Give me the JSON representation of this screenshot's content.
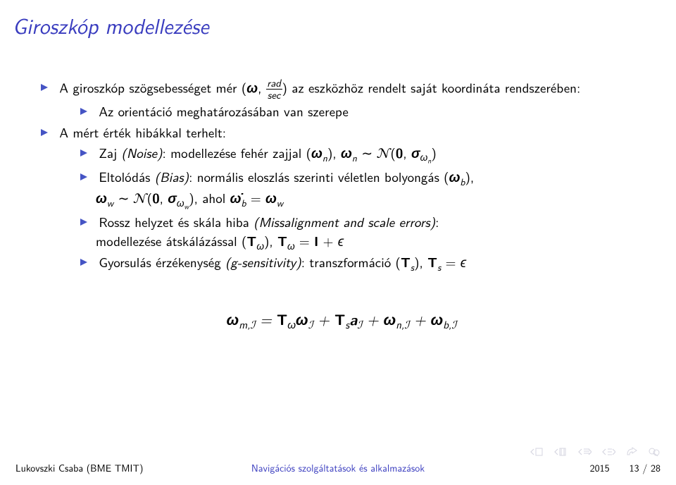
{
  "title_color": "#3a3dbf",
  "bullet_color": "#4554c4",
  "title": "Giroszkóp modellezése",
  "b1_pre": "A giroszkóp szögsebességet mér (",
  "b1_omega": "ω",
  "b1_frac_num": "rad",
  "b1_frac_den": "sec",
  "b1_post": ") az eszközhöz rendelt saját koordináta rendszerében:",
  "b1s1": "Az orientáció meghatározásában van szerepe",
  "b2": "A mért érték hibákkal terhelt:",
  "b2s1_pre": "Zaj ",
  "b2s1_noise": "(Noise)",
  "b2s1_mid1": ": modellezése fehér zajjal (",
  "b2s1_wn": "ω",
  "b2s1_n": "n",
  "b2s1_mid2": "), ",
  "b2s1_sim": " ∼ ",
  "b2s1_N": "𝒩",
  "b2s1_par": "(0, σ",
  "b2s1_sub_wn": "ω",
  "b2s1_sub_n": "n",
  "b2s1_close": ")",
  "b2s2_pre": "Eltolódás ",
  "b2s2_bias": "(Bias)",
  "b2s2_mid": ": normális eloszlás szerinti véletlen bolyongás (",
  "b2s2_wb": "ω",
  "b2s2_b": "b",
  "b2s2_post": "),",
  "b2s2_l2_ww": "ω",
  "b2s2_l2_w": "w",
  "b2s2_l2_sim": " ∼ ",
  "b2s2_l2_N": "𝒩",
  "b2s2_l2_par": "(0, σ",
  "b2s2_l2_sub_ww": "ω",
  "b2s2_l2_sub_w": "w",
  "b2s2_l2_close": ")",
  "b2s2_l2_ahol": ", ahol ",
  "b2s2_l2_dot": "ω̇",
  "b2s2_l2_b": "b",
  "b2s2_l2_eq": " = ",
  "b2s2_l2_ww2": "ω",
  "b2s2_l2_w2": "w",
  "b2s3_pre": "Rossz helyzet és skála hiba ",
  "b2s3_miss": "(Missalignment and scale errors)",
  "b2s3_post": ":",
  "b2s3_l2_pre": "modellezése átskálázással (",
  "b2s3_l2_T": "T",
  "b2s3_l2_w": "ω",
  "b2s3_l2_mid": "), ",
  "b2s3_l2_eq": " = ",
  "b2s3_l2_I": "I",
  "b2s3_l2_plus": " + ",
  "b2s3_l2_eps": "ϵ",
  "b2s4_pre": "Gyorsulás érzékenység ",
  "b2s4_gsen": "(g-sensitivity)",
  "b2s4_mid": ": transzformáció (",
  "b2s4_T": "T",
  "b2s4_s": "s",
  "b2s4_mid2": "), ",
  "b2s4_eq": " = ",
  "b2s4_eps": "ϵ",
  "eqn_wm": "ω",
  "eqn_m": "m",
  "eqn_I": "ℐ",
  "eqn_eq": " = ",
  "eqn_Tw": "T",
  "eqn_Tw_sub": "ω",
  "eqn_wI": "ω",
  "eqn_plus1": " + ",
  "eqn_Ts": "T",
  "eqn_Ts_sub": "s",
  "eqn_a": "a",
  "eqn_plus2": " + ",
  "eqn_wn": "ω",
  "eqn_wn_n": "n",
  "eqn_plus3": " + ",
  "eqn_wb": "ω",
  "eqn_wb_b": "b",
  "footer_author": "Lukovszki Csaba (BME TMIT)",
  "footer_title": "Navigációs szolgáltatások és alkalmazások",
  "footer_year": "2015",
  "footer_page": "13 / 28",
  "nav_color": "#c8c8d6"
}
